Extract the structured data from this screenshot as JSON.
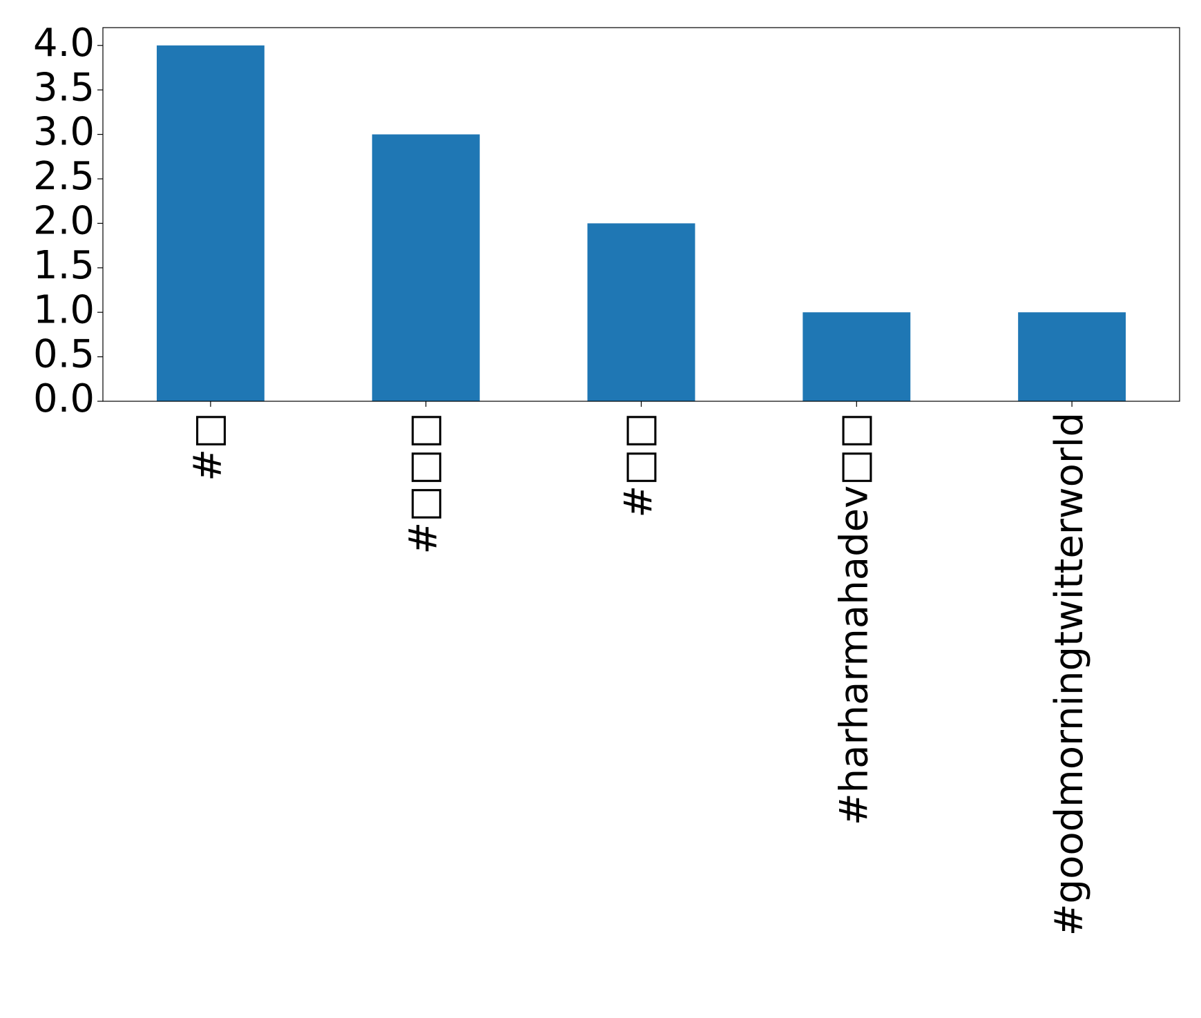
{
  "chart_data": {
    "type": "bar",
    "categories": [
      "#□",
      "#□□□",
      "#□□",
      "#harharmahadev□□",
      "#goodmorningtwitterworld"
    ],
    "values": [
      4,
      3,
      2,
      1,
      1
    ],
    "color": "#1f77b4",
    "ylim": [
      0,
      4.2
    ],
    "yticks": [
      {
        "value": 0,
        "label": "0.0"
      },
      {
        "value": 0.5,
        "label": "0.5"
      },
      {
        "value": 1,
        "label": "1.0"
      },
      {
        "value": 1.5,
        "label": "1.5"
      },
      {
        "value": 2,
        "label": "2.0"
      },
      {
        "value": 2.5,
        "label": "2.5"
      },
      {
        "value": 3,
        "label": "3.0"
      },
      {
        "value": 3.5,
        "label": "3.5"
      },
      {
        "value": 4,
        "label": "4.0"
      }
    ],
    "grid": false
  }
}
